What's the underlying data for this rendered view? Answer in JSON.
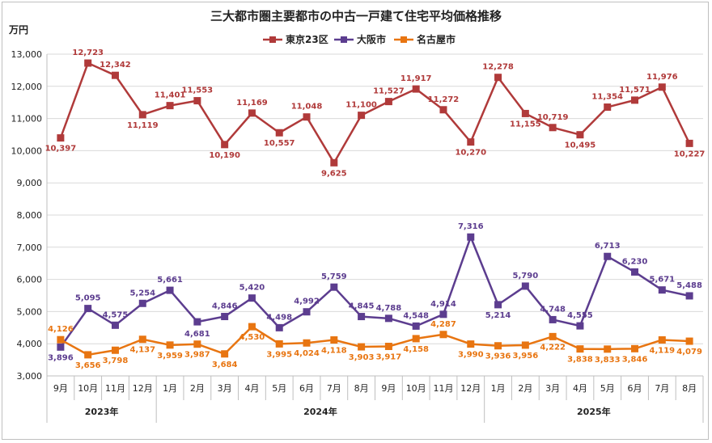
{
  "chart_data": {
    "type": "line",
    "title": "三大都市圏主要都市の中古一戸建て住宅平均価格推移",
    "ylabel": "万円",
    "ylim": [
      3000,
      13000
    ],
    "yticks": [
      "3,000",
      "4,000",
      "5,000",
      "6,000",
      "7,000",
      "8,000",
      "9,000",
      "10,000",
      "11,000",
      "12,000",
      "13,000"
    ],
    "categories": [
      "9月",
      "10月",
      "11月",
      "12月",
      "1月",
      "2月",
      "3月",
      "4月",
      "5月",
      "6月",
      "7月",
      "8月",
      "9月",
      "10月",
      "11月",
      "12月",
      "1月",
      "2月",
      "3月",
      "4月",
      "5月",
      "6月",
      "7月",
      "8月"
    ],
    "year_groups": [
      {
        "label": "2023年",
        "start": 0,
        "end": 3
      },
      {
        "label": "2024年",
        "start": 4,
        "end": 15
      },
      {
        "label": "2025年",
        "start": 16,
        "end": 23
      }
    ],
    "series": [
      {
        "name": "東京23区",
        "color": "#b03a3a",
        "values": [
          10397,
          12723,
          12342,
          11119,
          11401,
          11553,
          10190,
          11169,
          10557,
          11048,
          9625,
          11100,
          11527,
          11917,
          11272,
          10270,
          12278,
          11155,
          10719,
          10495,
          11354,
          11571,
          11976,
          10227
        ],
        "labels": [
          "10,397",
          "12,723",
          "12,342",
          "11,119",
          "11,401",
          "11,553",
          "10,190",
          "11,169",
          "10,557",
          "11,048",
          "9,625",
          "11,100",
          "11,527",
          "11,917",
          "11,272",
          "10,270",
          "12,278",
          "11,155",
          "10,719",
          "10,495",
          "11,354",
          "11,571",
          "11,976",
          "10,227"
        ]
      },
      {
        "name": "大阪市",
        "color": "#5c3d8f",
        "values": [
          3896,
          5095,
          4575,
          5254,
          5661,
          4681,
          4846,
          5420,
          4498,
          4992,
          5759,
          4845,
          4788,
          4548,
          4914,
          7316,
          5214,
          5790,
          4748,
          4555,
          6713,
          6230,
          5671,
          5488
        ],
        "labels": [
          "3,896",
          "5,095",
          "4,575",
          "5,254",
          "5,661",
          "4,681",
          "4,846",
          "5,420",
          "4,498",
          "4,992",
          "5,759",
          "4,845",
          "4,788",
          "4,548",
          "4,914",
          "7,316",
          "5,214",
          "5,790",
          "4,748",
          "4,555",
          "6,713",
          "6,230",
          "5,671",
          "5,488"
        ]
      },
      {
        "name": "名古屋市",
        "color": "#e87511",
        "values": [
          4126,
          3656,
          3798,
          4137,
          3959,
          3987,
          3684,
          4530,
          3995,
          4024,
          4118,
          3903,
          3917,
          4158,
          4287,
          3990,
          3936,
          3956,
          4222,
          3838,
          3833,
          3846,
          4119,
          4079
        ],
        "labels": [
          "4,126",
          "3,656",
          "3,798",
          "4,137",
          "3,959",
          "3,987",
          "3,684",
          "4,530",
          "3,995",
          "4,024",
          "4,118",
          "3,903",
          "3,917",
          "4,158",
          "4,287",
          "3,990",
          "3,936",
          "3,956",
          "4,222",
          "3,838",
          "3,833",
          "3,846",
          "4,119",
          "4,079"
        ]
      }
    ]
  }
}
